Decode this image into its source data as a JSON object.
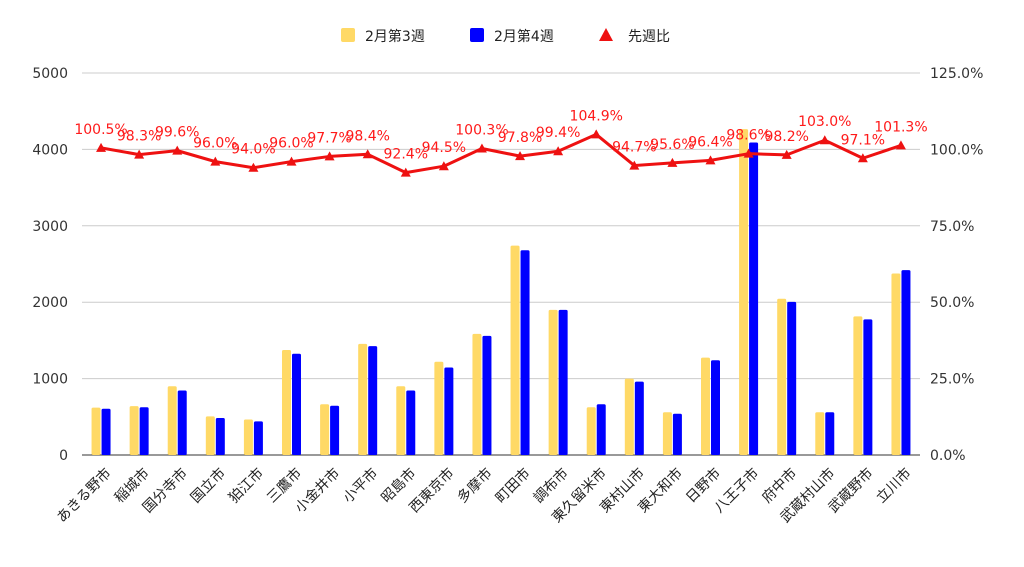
{
  "chart_data": {
    "type": "bar",
    "categories": [
      "あきる野市",
      "稲城市",
      "国分寺市",
      "国立市",
      "狛江市",
      "三鷹市",
      "小金井市",
      "小平市",
      "昭島市",
      "西東京市",
      "多摩市",
      "町田市",
      "調布市",
      "東久留米市",
      "東村山市",
      "東大和市",
      "日野市",
      "八王子市",
      "府中市",
      "武蔵村山市",
      "武蔵野市",
      "立川市"
    ],
    "series": [
      {
        "name": "2月第3週",
        "type": "bar",
        "axis": "left",
        "color": "#ffd966",
        "values": [
          620,
          640,
          900,
          505,
          465,
          1375,
          665,
          1455,
          900,
          1220,
          1585,
          2740,
          1900,
          625,
          1000,
          560,
          1275,
          4265,
          2045,
          560,
          1815,
          2375
        ]
      },
      {
        "name": "2月第4週",
        "type": "bar",
        "axis": "left",
        "color": "#0000ff",
        "values": [
          605,
          625,
          845,
          485,
          440,
          1325,
          645,
          1425,
          845,
          1145,
          1560,
          2680,
          1900,
          665,
          960,
          540,
          1240,
          4090,
          2005,
          560,
          1775,
          2420
        ]
      },
      {
        "name": "先週比",
        "type": "line",
        "axis": "right",
        "color": "#ee1111",
        "marker": "triangle",
        "values": [
          100.5,
          98.3,
          99.6,
          96.0,
          94.0,
          96.0,
          97.7,
          98.4,
          92.4,
          94.5,
          100.3,
          97.8,
          99.4,
          104.9,
          94.7,
          95.6,
          96.4,
          98.6,
          98.2,
          103.0,
          97.1,
          101.3
        ],
        "labels": [
          "100.5%",
          "98.3%",
          "99.6%",
          "96.0%",
          "94.0%",
          "96.0%",
          "97.7%",
          "98.4%",
          "92.4%",
          "94.5%",
          "100.3%",
          "97.8%",
          "99.4%",
          "104.9%",
          "94.7%",
          "95.6%",
          "96.4%",
          "98.6%",
          "98.2%",
          "103.0%",
          "97.1%",
          "101.3%"
        ]
      }
    ],
    "ylim_left": [
      0,
      5000
    ],
    "ylim_right": [
      0,
      125
    ],
    "yticks_left": [
      "0",
      "1000",
      "2000",
      "3000",
      "4000",
      "5000"
    ],
    "yticks_right": [
      "0.0%",
      "25.0%",
      "50.0%",
      "75.0%",
      "100.0%",
      "125.0%"
    ],
    "grid": true,
    "legend_position": "top-center"
  }
}
